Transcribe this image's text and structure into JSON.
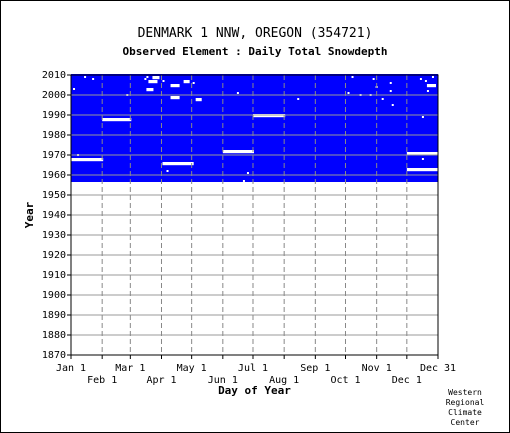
{
  "chart_data": {
    "type": "heatmap",
    "title": "DENMARK 1 NNW, OREGON   (354721)",
    "subtitle": "Observed Element : Daily Total Snowdepth",
    "xlabel": "Day of Year",
    "ylabel": "Year",
    "ylim": [
      1870,
      2010
    ],
    "data_year_range": [
      1955,
      2010
    ],
    "x_ticks_top_row": [
      "Jan 1",
      "Mar 1",
      "May 1",
      "Jul 1",
      "Sep 1",
      "Nov 1",
      "Dec 31"
    ],
    "x_ticks_bottom_row": [
      "Feb 1",
      "Apr 1",
      "Jun 1",
      "Aug 1",
      "Oct 1",
      "Dec 1"
    ],
    "y_ticks": [
      "1870",
      "1880",
      "1890",
      "1900",
      "1910",
      "1920",
      "1930",
      "1940",
      "1950",
      "1960",
      "1970",
      "1980",
      "1990",
      "2000",
      "2010"
    ],
    "data_color": "#0000ff",
    "missing_color": "#ffffff",
    "grid": true,
    "missing_segments": [
      {
        "year": 1968,
        "start_day": 1,
        "end_day": 32
      },
      {
        "year": 1988,
        "start_day": 32,
        "end_day": 60
      },
      {
        "year": 1966,
        "start_day": 92,
        "end_day": 122
      },
      {
        "year": 1972,
        "start_day": 152,
        "end_day": 182
      },
      {
        "year": 1990,
        "start_day": 182,
        "end_day": 213
      },
      {
        "year": 1971,
        "start_day": 335,
        "end_day": 365
      },
      {
        "year": 1963,
        "start_day": 335,
        "end_day": 365
      },
      {
        "year": 2005,
        "start_day": 355,
        "end_day": 363
      },
      {
        "year": 2007,
        "start_day": 78,
        "end_day": 86
      },
      {
        "year": 2003,
        "start_day": 76,
        "end_day": 82
      },
      {
        "year": 2005,
        "start_day": 100,
        "end_day": 108
      },
      {
        "year": 1999,
        "start_day": 100,
        "end_day": 108
      },
      {
        "year": 2007,
        "start_day": 113,
        "end_day": 118
      },
      {
        "year": 1998,
        "start_day": 125,
        "end_day": 130
      },
      {
        "year": 2009,
        "start_day": 82,
        "end_day": 88
      },
      {
        "year": 1955,
        "start_day": 170,
        "end_day": 365
      },
      {
        "year": 1955,
        "start_day": 1,
        "end_day": 168
      }
    ],
    "missing_days": [
      {
        "year": 2009,
        "day": 14
      },
      {
        "year": 2009,
        "day": 76
      },
      {
        "year": 2008,
        "day": 74
      },
      {
        "year": 2007,
        "day": 92
      },
      {
        "year": 2006,
        "day": 122
      },
      {
        "year": 2003,
        "day": 3
      },
      {
        "year": 2001,
        "day": 166
      },
      {
        "year": 2001,
        "day": 276
      },
      {
        "year": 2000,
        "day": 56
      },
      {
        "year": 2000,
        "day": 288
      },
      {
        "year": 2000,
        "day": 298
      },
      {
        "year": 1998,
        "day": 226
      },
      {
        "year": 1998,
        "day": 310
      },
      {
        "year": 1995,
        "day": 320
      },
      {
        "year": 1989,
        "day": 350
      },
      {
        "year": 1970,
        "day": 7
      },
      {
        "year": 1968,
        "day": 350
      },
      {
        "year": 1962,
        "day": 96
      },
      {
        "year": 1961,
        "day": 176
      },
      {
        "year": 1957,
        "day": 172
      },
      {
        "year": 2009,
        "day": 280
      },
      {
        "year": 2008,
        "day": 348
      },
      {
        "year": 2007,
        "day": 353
      },
      {
        "year": 2009,
        "day": 360
      },
      {
        "year": 2002,
        "day": 318
      },
      {
        "year": 2008,
        "day": 22
      },
      {
        "year": 2004,
        "day": 304
      },
      {
        "year": 2006,
        "day": 318
      },
      {
        "year": 2002,
        "day": 355
      },
      {
        "year": 2008,
        "day": 301
      }
    ]
  },
  "credit": [
    "Western",
    "Regional",
    "Climate",
    "Center"
  ]
}
